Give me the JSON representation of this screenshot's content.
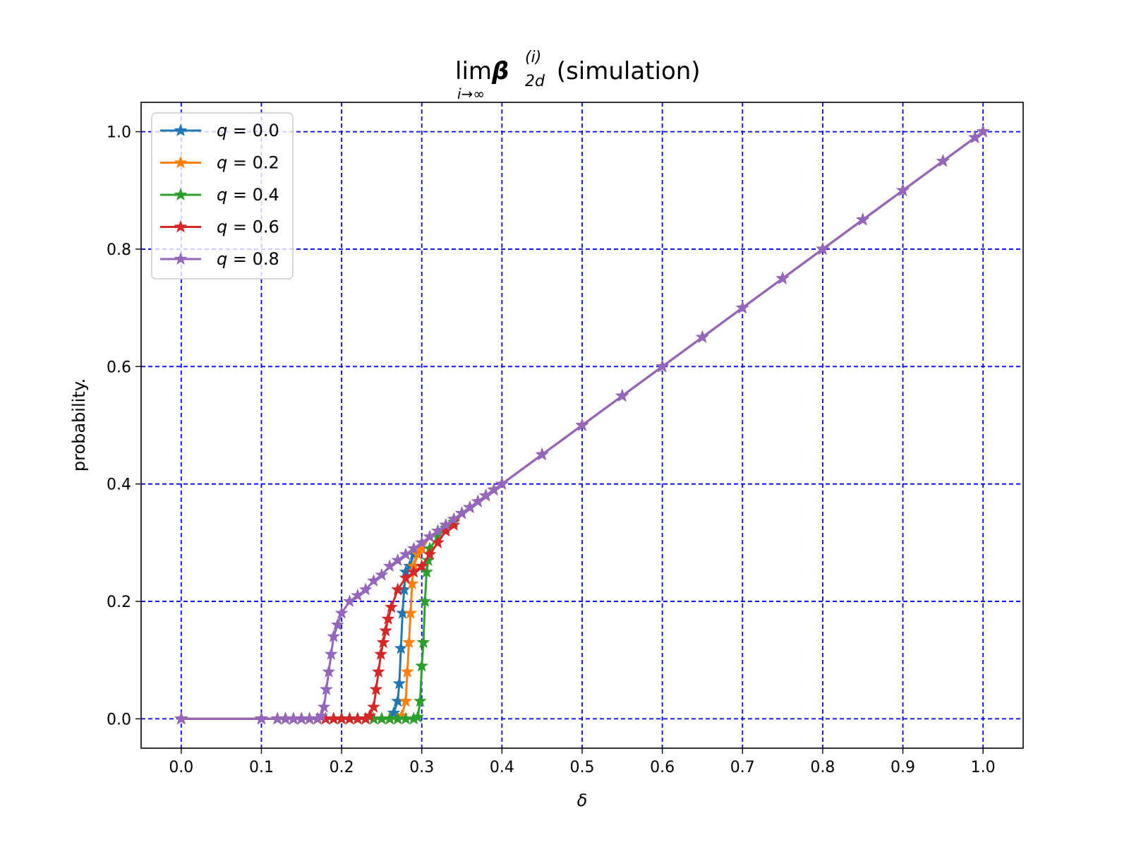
{
  "chart_data": {
    "type": "line",
    "title": {
      "prefix": "lim",
      "limit_sub": "i→∞",
      "symbol": "β",
      "sup": "(i)",
      "sub": "2d",
      "suffix": " (simulation)"
    },
    "xlabel": "δ",
    "ylabel": "probability.",
    "xlim": [
      -0.05,
      1.05
    ],
    "ylim": [
      -0.05,
      1.05
    ],
    "xticks": [
      0.0,
      0.1,
      0.2,
      0.3,
      0.4,
      0.5,
      0.6,
      0.7,
      0.8,
      0.9,
      1.0
    ],
    "xtick_labels": [
      "0.0",
      "0.1",
      "0.2",
      "0.3",
      "0.4",
      "0.5",
      "0.6",
      "0.7",
      "0.8",
      "0.9",
      "1.0"
    ],
    "yticks": [
      0.0,
      0.2,
      0.4,
      0.6,
      0.8,
      1.0
    ],
    "ytick_labels": [
      "0.0",
      "0.2",
      "0.4",
      "0.6",
      "0.8",
      "1.0"
    ],
    "grid": true,
    "grid_color": "#0000ff",
    "marker": "star",
    "legend_position": "top-left",
    "series": [
      {
        "name": "q = 0.0",
        "legend": {
          "var": "q",
          "eq": " = ",
          "val": "0.0"
        },
        "color": "#1f77b4",
        "x": [
          0.0,
          0.1,
          0.12,
          0.13,
          0.14,
          0.15,
          0.16,
          0.17,
          0.18,
          0.19,
          0.2,
          0.21,
          0.22,
          0.23,
          0.24,
          0.25,
          0.26,
          0.265,
          0.27,
          0.272,
          0.274,
          0.276,
          0.278,
          0.28,
          0.285,
          0.29,
          0.3,
          0.31,
          0.32,
          0.33,
          0.34,
          0.35,
          0.36,
          0.37,
          0.38,
          0.39,
          0.4,
          0.45,
          0.5,
          0.55,
          0.6,
          0.65,
          0.7,
          0.75,
          0.8,
          0.85,
          0.9,
          0.95,
          0.99,
          1.0
        ],
        "y": [
          0.0,
          0.0,
          0.0,
          0.0,
          0.0,
          0.0,
          0.0,
          0.0,
          0.0,
          0.0,
          0.0,
          0.0,
          0.0,
          0.0,
          0.0,
          0.0,
          0.0,
          0.01,
          0.03,
          0.06,
          0.12,
          0.18,
          0.22,
          0.25,
          0.26,
          0.28,
          0.29,
          0.31,
          0.32,
          0.33,
          0.34,
          0.35,
          0.36,
          0.37,
          0.38,
          0.39,
          0.4,
          0.45,
          0.5,
          0.55,
          0.6,
          0.65,
          0.7,
          0.75,
          0.8,
          0.85,
          0.9,
          0.95,
          0.99,
          1.0
        ]
      },
      {
        "name": "q = 0.2",
        "legend": {
          "var": "q",
          "eq": " = ",
          "val": "0.2"
        },
        "color": "#ff7f0e",
        "x": [
          0.0,
          0.1,
          0.12,
          0.13,
          0.14,
          0.15,
          0.16,
          0.17,
          0.18,
          0.19,
          0.2,
          0.21,
          0.22,
          0.23,
          0.24,
          0.25,
          0.26,
          0.27,
          0.275,
          0.28,
          0.282,
          0.284,
          0.286,
          0.288,
          0.29,
          0.295,
          0.3,
          0.31,
          0.32,
          0.33,
          0.34,
          0.35,
          0.36,
          0.37,
          0.38,
          0.39,
          0.4,
          0.45,
          0.5,
          0.55,
          0.6,
          0.65,
          0.7,
          0.75,
          0.8,
          0.85,
          0.9,
          0.95,
          0.99,
          1.0
        ],
        "y": [
          0.0,
          0.0,
          0.0,
          0.0,
          0.0,
          0.0,
          0.0,
          0.0,
          0.0,
          0.0,
          0.0,
          0.0,
          0.0,
          0.0,
          0.0,
          0.0,
          0.0,
          0.0,
          0.005,
          0.03,
          0.08,
          0.13,
          0.18,
          0.23,
          0.26,
          0.28,
          0.29,
          0.31,
          0.32,
          0.33,
          0.34,
          0.35,
          0.36,
          0.37,
          0.38,
          0.39,
          0.4,
          0.45,
          0.5,
          0.55,
          0.6,
          0.65,
          0.7,
          0.75,
          0.8,
          0.85,
          0.9,
          0.95,
          0.99,
          1.0
        ]
      },
      {
        "name": "q = 0.4",
        "legend": {
          "var": "q",
          "eq": " = ",
          "val": "0.4"
        },
        "color": "#2ca02c",
        "x": [
          0.0,
          0.1,
          0.12,
          0.13,
          0.14,
          0.15,
          0.16,
          0.17,
          0.18,
          0.19,
          0.2,
          0.21,
          0.22,
          0.23,
          0.24,
          0.25,
          0.26,
          0.27,
          0.28,
          0.29,
          0.295,
          0.298,
          0.3,
          0.302,
          0.304,
          0.306,
          0.308,
          0.31,
          0.32,
          0.33,
          0.34,
          0.35,
          0.36,
          0.37,
          0.38,
          0.39,
          0.4,
          0.45,
          0.5,
          0.55,
          0.6,
          0.65,
          0.7,
          0.75,
          0.8,
          0.85,
          0.9,
          0.95,
          0.99,
          1.0
        ],
        "y": [
          0.0,
          0.0,
          0.0,
          0.0,
          0.0,
          0.0,
          0.0,
          0.0,
          0.0,
          0.0,
          0.0,
          0.0,
          0.0,
          0.0,
          0.0,
          0.0,
          0.0,
          0.0,
          0.0,
          0.0,
          0.003,
          0.03,
          0.09,
          0.13,
          0.2,
          0.25,
          0.27,
          0.29,
          0.31,
          0.325,
          0.335,
          0.35,
          0.36,
          0.37,
          0.38,
          0.39,
          0.4,
          0.45,
          0.5,
          0.55,
          0.6,
          0.65,
          0.7,
          0.75,
          0.8,
          0.85,
          0.9,
          0.95,
          0.99,
          1.0
        ]
      },
      {
        "name": "q = 0.6",
        "legend": {
          "var": "q",
          "eq": " = ",
          "val": "0.6"
        },
        "color": "#d62728",
        "x": [
          0.0,
          0.1,
          0.12,
          0.13,
          0.14,
          0.15,
          0.16,
          0.17,
          0.18,
          0.19,
          0.2,
          0.21,
          0.22,
          0.23,
          0.235,
          0.24,
          0.243,
          0.246,
          0.249,
          0.252,
          0.255,
          0.258,
          0.262,
          0.27,
          0.28,
          0.29,
          0.3,
          0.31,
          0.32,
          0.33,
          0.34,
          0.35,
          0.36,
          0.37,
          0.38,
          0.39,
          0.4,
          0.45,
          0.5,
          0.55,
          0.6,
          0.65,
          0.7,
          0.75,
          0.8,
          0.85,
          0.9,
          0.95,
          0.99,
          1.0
        ],
        "y": [
          0.0,
          0.0,
          0.0,
          0.0,
          0.0,
          0.0,
          0.0,
          0.0,
          0.0,
          0.0,
          0.0,
          0.0,
          0.0,
          0.0,
          0.005,
          0.02,
          0.05,
          0.08,
          0.11,
          0.13,
          0.15,
          0.17,
          0.19,
          0.22,
          0.24,
          0.25,
          0.26,
          0.28,
          0.3,
          0.32,
          0.33,
          0.35,
          0.36,
          0.37,
          0.38,
          0.39,
          0.4,
          0.45,
          0.5,
          0.55,
          0.6,
          0.65,
          0.7,
          0.75,
          0.8,
          0.85,
          0.9,
          0.95,
          0.99,
          1.0
        ]
      },
      {
        "name": "q = 0.8",
        "legend": {
          "var": "q",
          "eq": " = ",
          "val": "0.8"
        },
        "color": "#9467bd",
        "x": [
          0.0,
          0.1,
          0.12,
          0.13,
          0.14,
          0.15,
          0.16,
          0.17,
          0.175,
          0.178,
          0.181,
          0.184,
          0.187,
          0.19,
          0.195,
          0.2,
          0.21,
          0.22,
          0.23,
          0.24,
          0.25,
          0.26,
          0.27,
          0.28,
          0.29,
          0.3,
          0.31,
          0.32,
          0.33,
          0.34,
          0.35,
          0.36,
          0.37,
          0.38,
          0.39,
          0.4,
          0.45,
          0.5,
          0.55,
          0.6,
          0.65,
          0.7,
          0.75,
          0.8,
          0.85,
          0.9,
          0.95,
          0.99,
          1.0
        ],
        "y": [
          0.0,
          0.0,
          0.0,
          0.0,
          0.0,
          0.0,
          0.0,
          0.0,
          0.005,
          0.02,
          0.05,
          0.08,
          0.11,
          0.14,
          0.16,
          0.18,
          0.2,
          0.21,
          0.22,
          0.235,
          0.245,
          0.26,
          0.27,
          0.28,
          0.29,
          0.3,
          0.31,
          0.32,
          0.33,
          0.34,
          0.35,
          0.36,
          0.37,
          0.38,
          0.39,
          0.4,
          0.45,
          0.5,
          0.55,
          0.6,
          0.65,
          0.7,
          0.75,
          0.8,
          0.85,
          0.9,
          0.95,
          0.99,
          1.0
        ]
      }
    ]
  }
}
